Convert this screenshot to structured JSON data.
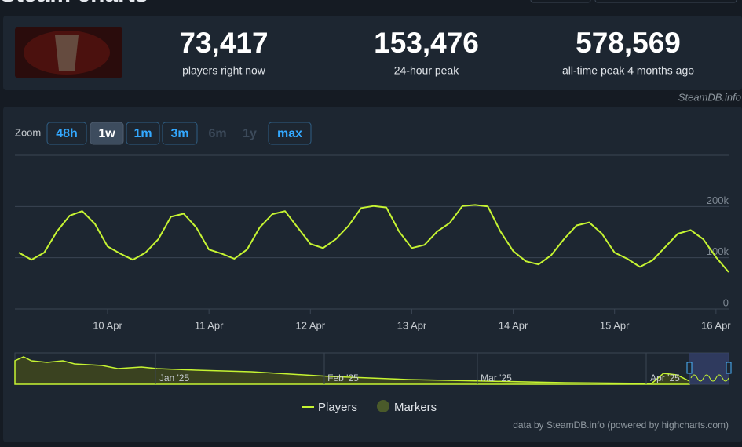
{
  "header": {
    "title": "Steam charts",
    "credit": "SteamDB.info"
  },
  "stats": [
    {
      "value": "73,417",
      "label": "players right now"
    },
    {
      "value": "153,476",
      "label": "24-hour peak"
    },
    {
      "value": "578,569",
      "label": "all-time peak 4 months ago"
    }
  ],
  "zoom": {
    "label": "Zoom",
    "buttons": [
      {
        "label": "48h",
        "state": "enabled"
      },
      {
        "label": "1w",
        "state": "active"
      },
      {
        "label": "1m",
        "state": "enabled"
      },
      {
        "label": "3m",
        "state": "enabled"
      },
      {
        "label": "6m",
        "state": "disabled"
      },
      {
        "label": "1y",
        "state": "disabled"
      },
      {
        "label": "max",
        "state": "enabled"
      }
    ]
  },
  "chart_data": {
    "type": "line",
    "categories": [
      null,
      null,
      null,
      null,
      null,
      null,
      null,
      "10 Apr",
      null,
      null,
      null,
      null,
      null,
      null,
      null,
      "11 Apr",
      null,
      null,
      null,
      null,
      null,
      null,
      null,
      "12 Apr",
      null,
      null,
      null,
      null,
      null,
      null,
      null,
      "13 Apr",
      null,
      null,
      null,
      null,
      null,
      null,
      null,
      "14 Apr",
      null,
      null,
      null,
      null,
      null,
      null,
      null,
      "15 Apr",
      null,
      null,
      null,
      null,
      null,
      null,
      null,
      "16 Apr",
      null
    ],
    "series": [
      {
        "name": "Players",
        "color": "#c6f432",
        "values": [
          110000,
          96000,
          110000,
          151000,
          182000,
          191000,
          166000,
          122000,
          108000,
          96000,
          110000,
          136000,
          180000,
          186000,
          159000,
          116000,
          108000,
          98000,
          116000,
          159000,
          185000,
          191000,
          159000,
          127000,
          119000,
          136000,
          162000,
          197000,
          201000,
          198000,
          151000,
          119000,
          125000,
          151000,
          168000,
          201000,
          203000,
          200000,
          151000,
          113000,
          93000,
          87000,
          105000,
          136000,
          163000,
          169000,
          147000,
          110000,
          98000,
          82000,
          95000,
          121000,
          147000,
          154000,
          136000,
          101000,
          72000
        ]
      }
    ],
    "markers_label": "Markers",
    "ylim": [
      0,
      300000
    ],
    "yticks": [
      0,
      {
        "value": 100000,
        "label": "100k"
      },
      {
        "value": 200000,
        "label": "200k"
      }
    ],
    "grid": true,
    "navigator_labels": [
      "Jan '25",
      "Feb '25",
      "Mar '25",
      "Apr '25"
    ],
    "footer": "data by SteamDB.info (powered by highcharts.com)"
  }
}
